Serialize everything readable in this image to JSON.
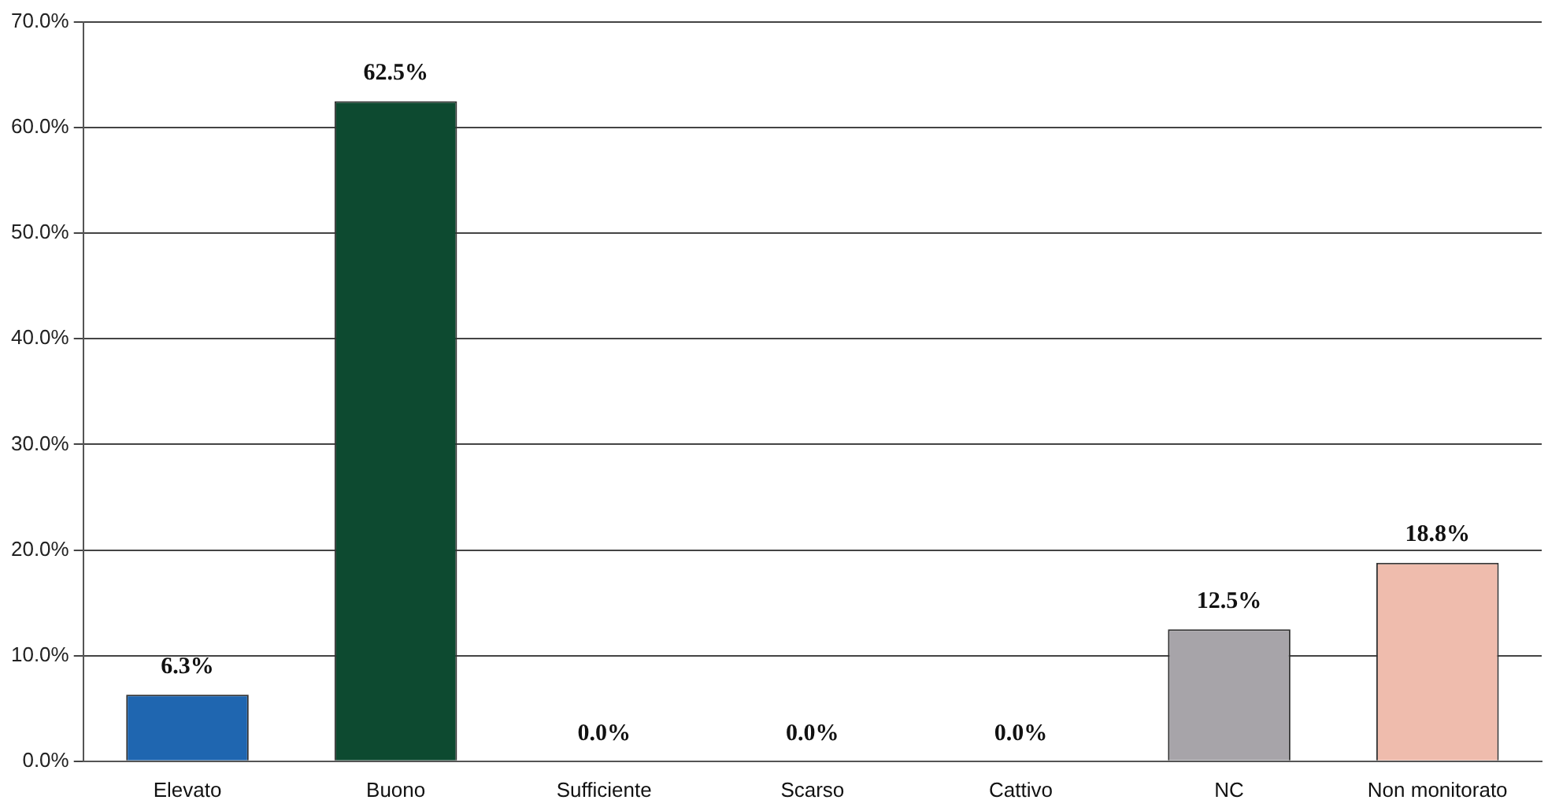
{
  "chart_data": {
    "type": "bar",
    "categories": [
      "Elevato",
      "Buono",
      "Sufficiente",
      "Scarso",
      "Cattivo",
      "NC",
      "Non monitorato"
    ],
    "values": [
      6.3,
      62.5,
      0,
      0,
      0,
      12.5,
      18.8
    ],
    "colors": [
      "#1f66b0",
      "#0d4a30",
      "#3a8a3a",
      "#d9c020",
      "#c03020",
      "#a7a4a9",
      "#efbcad"
    ],
    "value_labels": [
      "6.3%",
      "62.5%",
      "0.0%",
      "0.0%",
      "0.0%",
      "12.5%",
      "18.8%"
    ],
    "ylim": [
      0,
      70
    ],
    "yticks": [
      {
        "value": 0,
        "label": "0.0%"
      },
      {
        "value": 10,
        "label": "10.0%"
      },
      {
        "value": 20,
        "label": "20.0%"
      },
      {
        "value": 30,
        "label": "30.0%"
      },
      {
        "value": 40,
        "label": "40.0%"
      },
      {
        "value": 50,
        "label": "50.0%"
      },
      {
        "value": 60,
        "label": "60.0%"
      },
      {
        "value": 70,
        "label": "70.0%"
      }
    ],
    "grid": "y",
    "legend": false
  }
}
